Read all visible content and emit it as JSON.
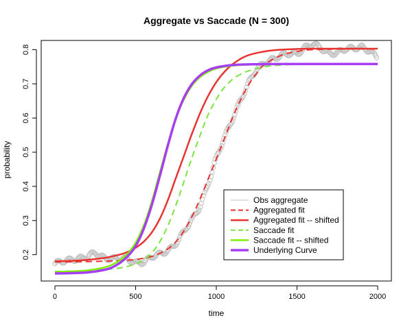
{
  "chart_data": {
    "type": "line",
    "title": "Aggregate vs Saccade (N = 300)",
    "xlabel": "time",
    "ylabel": "probability",
    "xlim": [
      0,
      2000
    ],
    "ylim": [
      0.14,
      0.82
    ],
    "xticks": [
      0,
      500,
      1000,
      1500,
      2000
    ],
    "xtick_labels": [
      "0",
      "500",
      "1000",
      "1500",
      "2000"
    ],
    "yticks": [
      0.2,
      0.3,
      0.4,
      0.5,
      0.6,
      0.7,
      0.8
    ],
    "ytick_labels": [
      "0.2",
      "0.3",
      "0.4",
      "0.5",
      "0.6",
      "0.7",
      "0.8"
    ],
    "grid": false,
    "legend_position": "bottom-right",
    "series": [
      {
        "name": "Obs aggregate",
        "kind": "points",
        "color": "#c0c0c0",
        "x": [
          0,
          50,
          100,
          150,
          200,
          250,
          300,
          350,
          400,
          450,
          500,
          550,
          600,
          650,
          700,
          750,
          800,
          850,
          900,
          950,
          1000,
          1050,
          1100,
          1150,
          1200,
          1250,
          1300,
          1350,
          1400,
          1450,
          1500,
          1550,
          1600,
          1650,
          1700,
          1750,
          1800,
          1850,
          1900,
          1950,
          2000
        ],
        "y": [
          0.17,
          0.18,
          0.19,
          0.19,
          0.19,
          0.205,
          0.195,
          0.19,
          0.185,
          0.185,
          0.18,
          0.18,
          0.19,
          0.2,
          0.215,
          0.235,
          0.265,
          0.3,
          0.345,
          0.41,
          0.48,
          0.54,
          0.6,
          0.655,
          0.7,
          0.74,
          0.765,
          0.775,
          0.78,
          0.785,
          0.79,
          0.81,
          0.815,
          0.8,
          0.79,
          0.795,
          0.8,
          0.8,
          0.81,
          0.8,
          0.775
        ]
      },
      {
        "name": "Aggregated fit",
        "kind": "line",
        "color": "#e8332e",
        "dash": "dashed",
        "x": [
          0,
          100,
          200,
          300,
          400,
          500,
          600,
          650,
          700,
          750,
          800,
          850,
          900,
          950,
          1000,
          1050,
          1100,
          1150,
          1200,
          1250,
          1300,
          1400,
          1500,
          1600,
          1800,
          2000
        ],
        "y": [
          0.179,
          0.179,
          0.18,
          0.181,
          0.183,
          0.186,
          0.195,
          0.204,
          0.217,
          0.238,
          0.27,
          0.312,
          0.364,
          0.422,
          0.48,
          0.54,
          0.6,
          0.653,
          0.697,
          0.731,
          0.757,
          0.783,
          0.795,
          0.8,
          0.802,
          0.802
        ]
      },
      {
        "name": "Aggregated fit -- shifted",
        "kind": "line",
        "color": "#e8332e",
        "dash": "solid",
        "x": [
          0,
          100,
          200,
          300,
          400,
          450,
          500,
          550,
          600,
          650,
          700,
          750,
          800,
          850,
          900,
          950,
          1000,
          1050,
          1100,
          1150,
          1200,
          1300,
          1400,
          1500,
          1600,
          1800,
          2000
        ],
        "y": [
          0.181,
          0.182,
          0.185,
          0.19,
          0.2,
          0.208,
          0.22,
          0.238,
          0.265,
          0.305,
          0.36,
          0.425,
          0.49,
          0.555,
          0.615,
          0.665,
          0.705,
          0.735,
          0.757,
          0.773,
          0.784,
          0.795,
          0.8,
          0.802,
          0.803,
          0.803,
          0.803
        ]
      },
      {
        "name": "Saccade fit",
        "kind": "line",
        "color": "#79e43c",
        "dash": "dashed",
        "x": [
          0,
          100,
          200,
          300,
          400,
          450,
          500,
          550,
          600,
          650,
          700,
          750,
          800,
          850,
          900,
          950,
          1000,
          1050,
          1100,
          1150,
          1200,
          1300,
          1400,
          1500,
          1600,
          1800,
          2000
        ],
        "y": [
          0.151,
          0.152,
          0.153,
          0.156,
          0.161,
          0.166,
          0.173,
          0.185,
          0.205,
          0.238,
          0.285,
          0.345,
          0.415,
          0.485,
          0.55,
          0.61,
          0.655,
          0.69,
          0.713,
          0.728,
          0.738,
          0.75,
          0.755,
          0.757,
          0.758,
          0.758,
          0.758
        ]
      },
      {
        "name": "Saccade fit -- shifted",
        "kind": "line",
        "color": "#7cf000",
        "dash": "solid",
        "x": [
          0,
          100,
          200,
          300,
          350,
          400,
          450,
          500,
          550,
          600,
          650,
          700,
          750,
          800,
          850,
          900,
          950,
          1000,
          1100,
          1200,
          1400,
          1600,
          1800,
          2000
        ],
        "y": [
          0.15,
          0.151,
          0.154,
          0.162,
          0.17,
          0.183,
          0.203,
          0.235,
          0.285,
          0.355,
          0.44,
          0.525,
          0.6,
          0.655,
          0.695,
          0.72,
          0.735,
          0.745,
          0.753,
          0.756,
          0.758,
          0.758,
          0.758,
          0.758
        ]
      },
      {
        "name": "Underlying Curve",
        "kind": "line",
        "color": "#a63ef2",
        "dash": "solid",
        "x": [
          0,
          100,
          200,
          300,
          350,
          400,
          450,
          500,
          550,
          600,
          650,
          700,
          750,
          800,
          850,
          900,
          950,
          1000,
          1100,
          1200,
          1400,
          1600,
          1800,
          2000
        ],
        "y": [
          0.145,
          0.146,
          0.148,
          0.155,
          0.162,
          0.175,
          0.195,
          0.225,
          0.275,
          0.345,
          0.43,
          0.52,
          0.6,
          0.66,
          0.7,
          0.725,
          0.74,
          0.748,
          0.755,
          0.757,
          0.758,
          0.758,
          0.758,
          0.758
        ]
      }
    ]
  }
}
